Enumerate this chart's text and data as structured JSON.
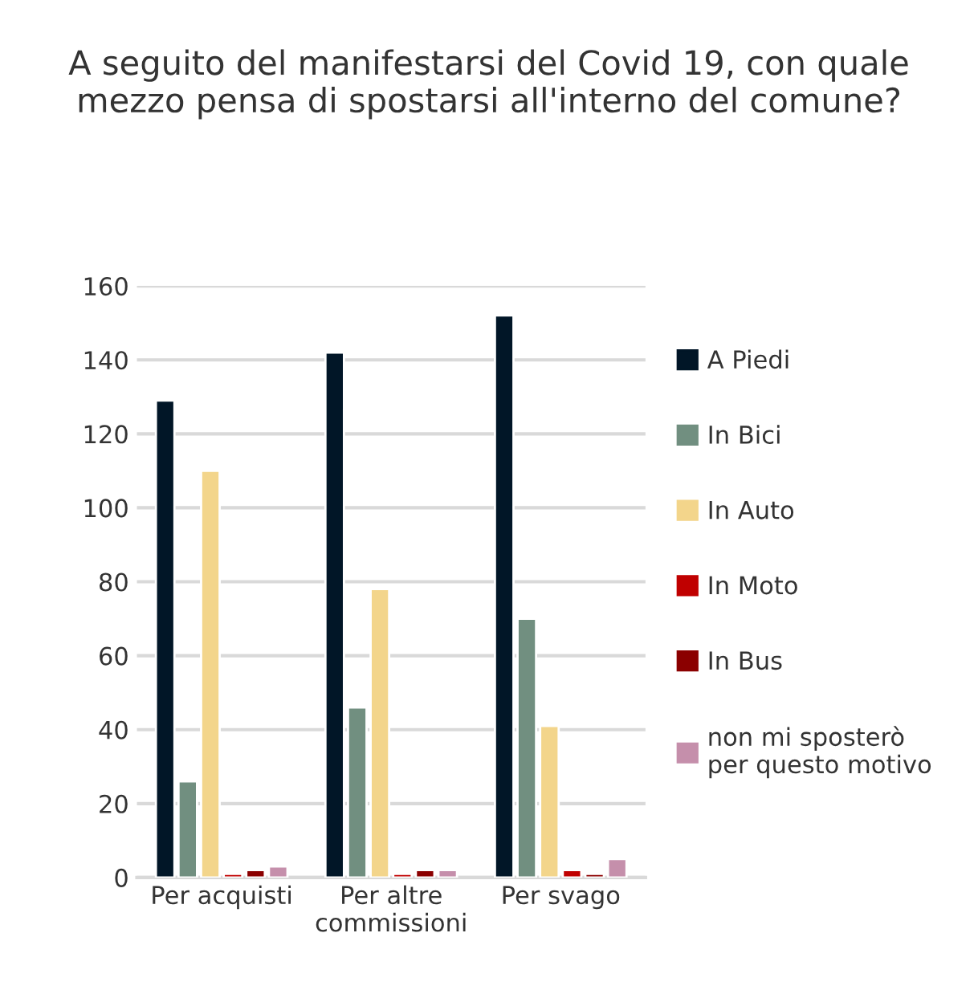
{
  "chart_data": {
    "type": "bar",
    "title": "A seguito del manifestarsi del Covid 19, con quale mezzo pensa di spostarsi all'interno del comune?",
    "categories": [
      "Per acquisti",
      "Per altre\ncommissioni",
      "Per svago"
    ],
    "series": [
      {
        "name": "A Piedi",
        "color": "#011627",
        "values": [
          129,
          142,
          152
        ]
      },
      {
        "name": "In Bici",
        "color": "#718f80",
        "values": [
          26,
          46,
          70
        ]
      },
      {
        "name": "In Auto",
        "color": "#f3d58b",
        "values": [
          110,
          78,
          41
        ]
      },
      {
        "name": "In Moto",
        "color": "#c00000",
        "values": [
          1,
          1,
          2
        ]
      },
      {
        "name": "In Bus",
        "color": "#8b0000",
        "values": [
          2,
          2,
          1
        ]
      },
      {
        "name": "non mi sposterò\nper questo motivo",
        "color": "#c58fab",
        "values": [
          3,
          2,
          5
        ]
      }
    ],
    "ylim": [
      0,
      160
    ],
    "yticks": [
      0,
      20,
      40,
      60,
      80,
      100,
      120,
      140,
      160
    ],
    "grid": "y",
    "legend": "right"
  }
}
